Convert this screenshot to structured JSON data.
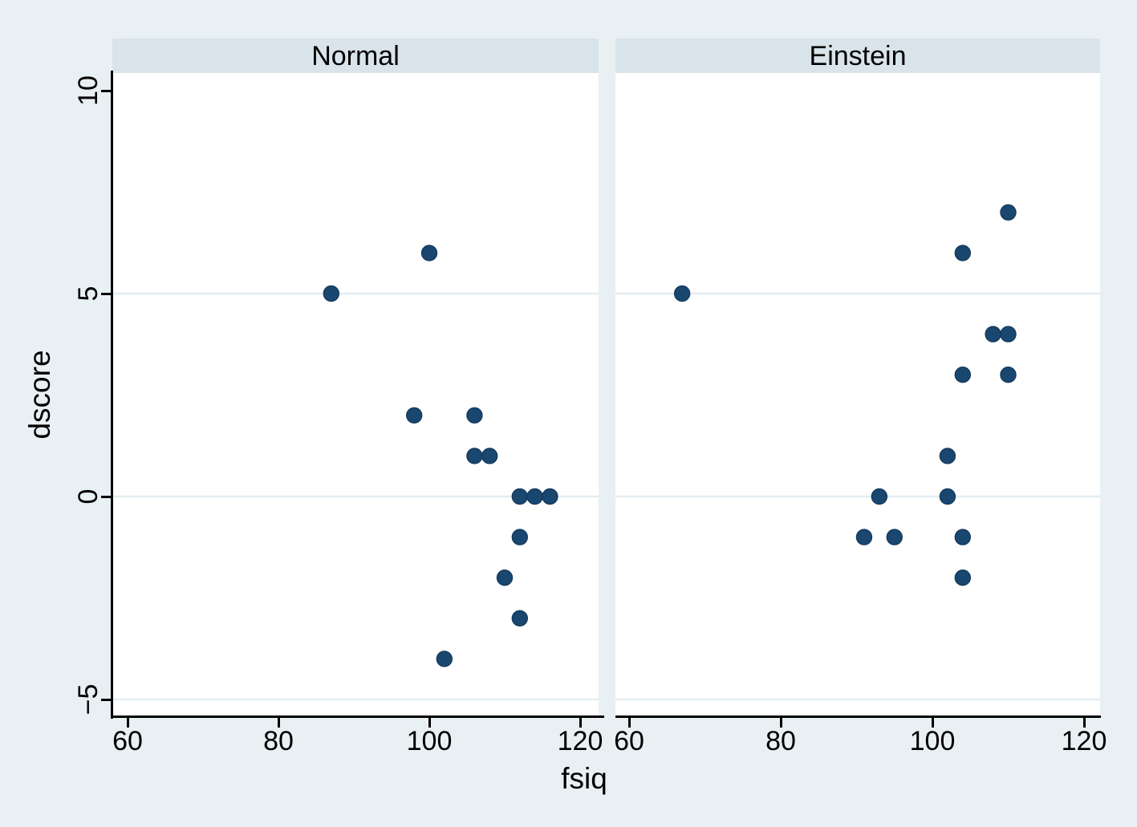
{
  "figure": {
    "x_axis_title": "fsiq",
    "y_axis_title": "dscore",
    "x_tick_labels": [
      "60",
      "80",
      "100",
      "120"
    ],
    "x_tick_values": [
      60,
      80,
      100,
      120
    ],
    "y_tick_labels": [
      "10",
      "5",
      "0",
      "−5"
    ],
    "y_tick_values": [
      10,
      5,
      0,
      -5
    ]
  },
  "colors": {
    "background": "#e9f0f3",
    "panel_band": "#d8e3ea",
    "plot_background": "#ffffff",
    "gridline": "#e3ecf1",
    "axis": "#000000",
    "marker_fill": "#1a476f",
    "marker_stroke": "#143a5e"
  },
  "chart_data": [
    {
      "type": "scatter",
      "title": "Normal",
      "xlabel": "fsiq",
      "ylabel": "dscore",
      "xlim": [
        58,
        122.5
      ],
      "ylim": [
        -5.4,
        10.4
      ],
      "x_ticks": [
        60,
        80,
        100,
        120
      ],
      "y_ticks": [
        10,
        5,
        0,
        -5
      ],
      "gridlines_y": [
        5,
        0,
        -5
      ],
      "grid": "horizontal-only",
      "legend": "none",
      "points": [
        {
          "fsiq": 87,
          "dscore": 5
        },
        {
          "fsiq": 100,
          "dscore": 6
        },
        {
          "fsiq": 98,
          "dscore": 2
        },
        {
          "fsiq": 106,
          "dscore": 2
        },
        {
          "fsiq": 106,
          "dscore": 1
        },
        {
          "fsiq": 108,
          "dscore": 1
        },
        {
          "fsiq": 112,
          "dscore": 0
        },
        {
          "fsiq": 114,
          "dscore": 0
        },
        {
          "fsiq": 116,
          "dscore": 0
        },
        {
          "fsiq": 112,
          "dscore": -1
        },
        {
          "fsiq": 110,
          "dscore": -2
        },
        {
          "fsiq": 112,
          "dscore": -3
        },
        {
          "fsiq": 102,
          "dscore": -4
        }
      ]
    },
    {
      "type": "scatter",
      "title": "Einstein",
      "xlabel": "fsiq",
      "ylabel": "dscore",
      "xlim": [
        58,
        122.5
      ],
      "ylim": [
        -5.4,
        10.4
      ],
      "x_ticks": [
        60,
        80,
        100,
        120
      ],
      "y_ticks": [
        10,
        5,
        0,
        -5
      ],
      "gridlines_y": [
        5,
        0,
        -5
      ],
      "grid": "horizontal-only",
      "legend": "none",
      "points": [
        {
          "fsiq": 67,
          "dscore": 5
        },
        {
          "fsiq": 110,
          "dscore": 7
        },
        {
          "fsiq": 104,
          "dscore": 6
        },
        {
          "fsiq": 108,
          "dscore": 4
        },
        {
          "fsiq": 110,
          "dscore": 4
        },
        {
          "fsiq": 104,
          "dscore": 3
        },
        {
          "fsiq": 110,
          "dscore": 3
        },
        {
          "fsiq": 102,
          "dscore": 1
        },
        {
          "fsiq": 93,
          "dscore": 0
        },
        {
          "fsiq": 102,
          "dscore": 0
        },
        {
          "fsiq": 91,
          "dscore": -1
        },
        {
          "fsiq": 95,
          "dscore": -1
        },
        {
          "fsiq": 104,
          "dscore": -1
        },
        {
          "fsiq": 104,
          "dscore": -2
        }
      ]
    }
  ]
}
